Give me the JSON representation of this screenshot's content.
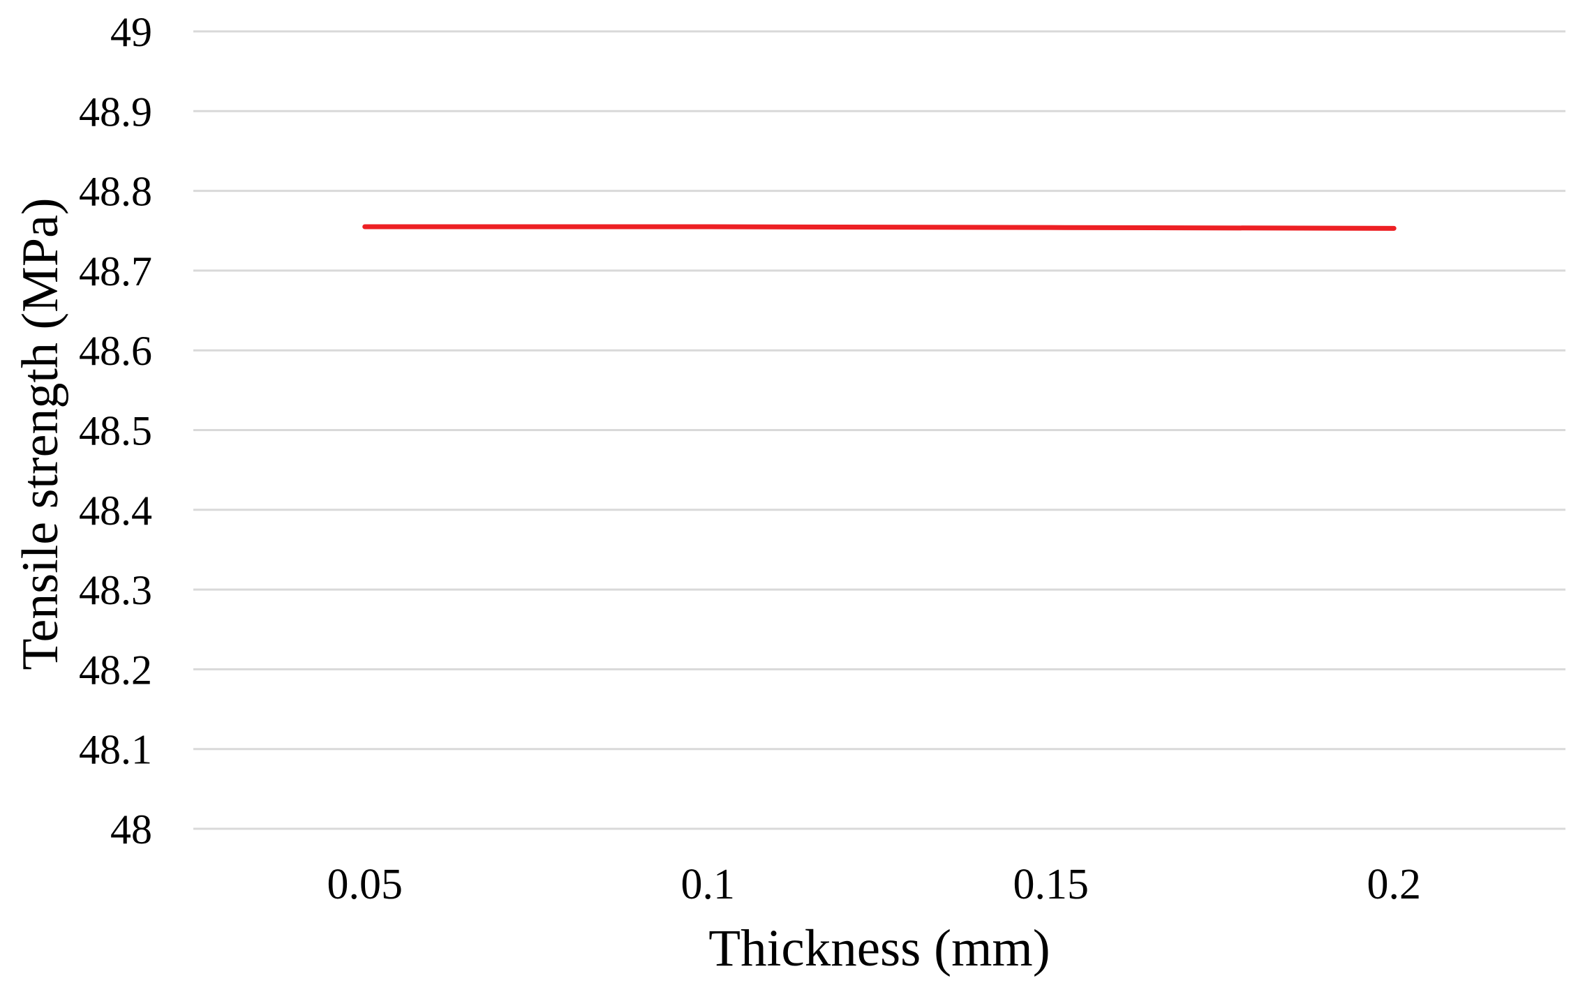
{
  "chart_data": {
    "type": "line",
    "title": "",
    "xlabel": "Thickness (mm)",
    "ylabel": "Tensile strength (MPa)",
    "x": [
      0.05,
      0.1,
      0.15,
      0.2
    ],
    "x_tick_labels": [
      "0.05",
      "0.1",
      "0.15",
      "0.2"
    ],
    "y_tick_labels": [
      "49",
      "48.9",
      "48.8",
      "48.7",
      "48.6",
      "48.5",
      "48.4",
      "48.3",
      "48.2",
      "48.1",
      "48"
    ],
    "ylim": [
      48,
      49
    ],
    "series": [
      {
        "color": "#ed2024",
        "values": [
          48.755,
          48.755,
          48.754,
          48.753
        ]
      }
    ],
    "grid": "horizontal-only",
    "gridline_color": "#d9d9d9",
    "axis_text_color": "#000000",
    "background": "#ffffff",
    "legend_position": "none"
  }
}
